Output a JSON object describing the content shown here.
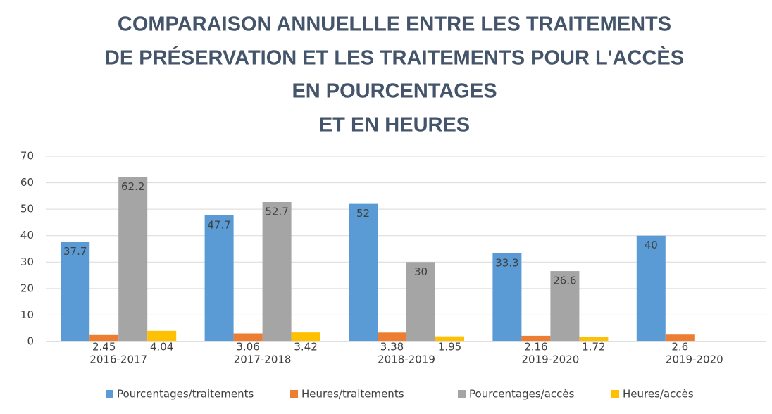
{
  "chart_data": {
    "type": "bar",
    "title": [
      "COMPARAISON ANNUELLLE ENTRE LES TRAITEMENTS",
      "DE PRÉSERVATION ET LES TRAITEMENTS POUR L'ACCÈS",
      "EN POURCENTAGES",
      "ET EN HEURES"
    ],
    "categories": [
      "2016-2017",
      "2017-2018",
      "2018-2019",
      "2019-2020",
      "2019-2020"
    ],
    "series": [
      {
        "name": "Pourcentages/traitements",
        "color": "#5b9bd5",
        "values": [
          37.7,
          47.7,
          52,
          33.3,
          40
        ]
      },
      {
        "name": "Heures/traitements",
        "color": "#ed7d31",
        "values": [
          2.45,
          3.06,
          3.38,
          2.16,
          2.6
        ]
      },
      {
        "name": "Pourcentages/accès",
        "color": "#a5a5a5",
        "values": [
          62.2,
          52.7,
          30,
          26.6,
          null
        ]
      },
      {
        "name": "Heures/accès",
        "color": "#ffc000",
        "values": [
          4.04,
          3.42,
          1.95,
          1.72,
          null
        ]
      }
    ],
    "ylim": [
      0,
      70
    ],
    "yticks": [
      0,
      10,
      20,
      30,
      40,
      50,
      60,
      70
    ],
    "grid": true,
    "legend": "bottom"
  }
}
